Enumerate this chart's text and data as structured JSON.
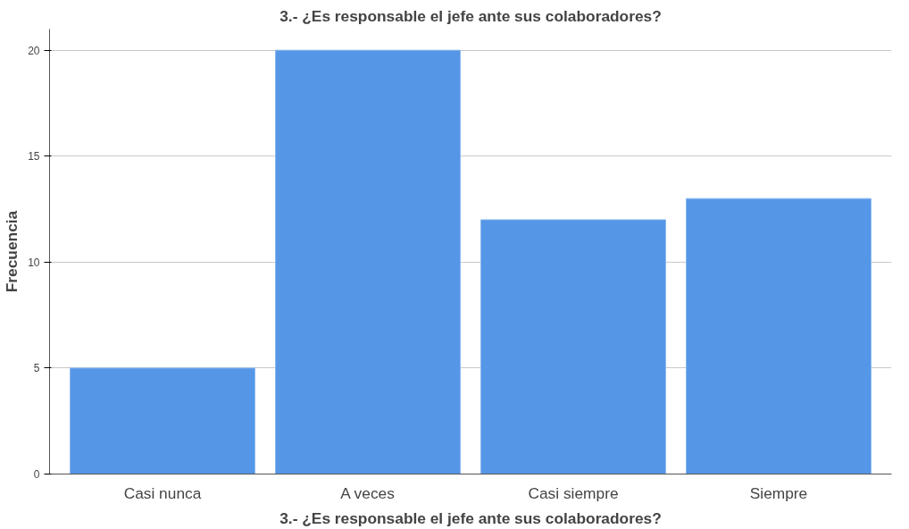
{
  "chart_data": {
    "type": "bar",
    "title": "3.- ¿Es responsable el jefe ante sus colaboradores?",
    "xlabel": "3.- ¿Es responsable el jefe ante sus colaboradores?",
    "ylabel": "Frecuencia",
    "categories": [
      "Casi nunca",
      "A veces",
      "Casi siempre",
      "Siempre"
    ],
    "values": [
      5,
      20,
      12,
      13
    ],
    "color": "#5596e6",
    "ylim": [
      0,
      21
    ],
    "yticks": [
      0,
      5,
      10,
      15,
      20
    ],
    "grid": "y"
  }
}
